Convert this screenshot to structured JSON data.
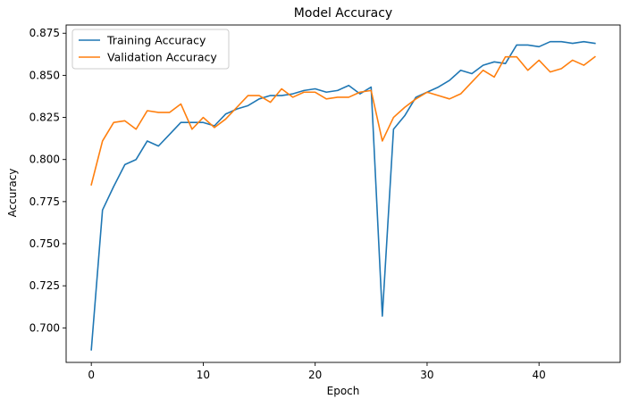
{
  "chart_data": {
    "type": "line",
    "title": "Model Accuracy",
    "xlabel": "Epoch",
    "ylabel": "Accuracy",
    "xlim": [
      -2.25,
      47.25
    ],
    "ylim": [
      0.6795,
      0.8799
    ],
    "xticks": [
      0,
      10,
      20,
      30,
      40
    ],
    "xtick_labels": [
      "0",
      "10",
      "20",
      "30",
      "40"
    ],
    "yticks": [
      0.7,
      0.725,
      0.75,
      0.775,
      0.8,
      0.825,
      0.85,
      0.875
    ],
    "ytick_labels": [
      "0.700",
      "0.725",
      "0.750",
      "0.775",
      "0.800",
      "0.825",
      "0.850",
      "0.875"
    ],
    "grid": false,
    "legend_position": "top-left",
    "x": [
      0,
      1,
      2,
      3,
      4,
      5,
      6,
      7,
      8,
      9,
      10,
      11,
      12,
      13,
      14,
      15,
      16,
      17,
      18,
      19,
      20,
      21,
      22,
      23,
      24,
      25,
      26,
      27,
      28,
      29,
      30,
      31,
      32,
      33,
      34,
      35,
      36,
      37,
      38,
      39,
      40,
      41,
      42,
      43,
      44,
      45
    ],
    "series": [
      {
        "name": "Training Accuracy",
        "color": "#1f77b4",
        "values": [
          0.687,
          0.77,
          0.784,
          0.797,
          0.8,
          0.811,
          0.808,
          0.815,
          0.822,
          0.822,
          0.822,
          0.82,
          0.827,
          0.83,
          0.832,
          0.836,
          0.838,
          0.838,
          0.839,
          0.841,
          0.842,
          0.84,
          0.841,
          0.844,
          0.839,
          0.843,
          0.707,
          0.818,
          0.826,
          0.837,
          0.84,
          0.843,
          0.847,
          0.853,
          0.851,
          0.856,
          0.858,
          0.857,
          0.868,
          0.868,
          0.867,
          0.87,
          0.87,
          0.869,
          0.87,
          0.869
        ]
      },
      {
        "name": "Validation Accuracy",
        "color": "#ff7f0e",
        "values": [
          0.785,
          0.811,
          0.822,
          0.823,
          0.818,
          0.829,
          0.828,
          0.828,
          0.833,
          0.818,
          0.825,
          0.819,
          0.824,
          0.831,
          0.838,
          0.838,
          0.834,
          0.842,
          0.837,
          0.84,
          0.84,
          0.836,
          0.837,
          0.837,
          0.84,
          0.841,
          0.811,
          0.825,
          0.831,
          0.836,
          0.84,
          0.838,
          0.836,
          0.839,
          0.846,
          0.853,
          0.849,
          0.861,
          0.861,
          0.853,
          0.859,
          0.852,
          0.854,
          0.859,
          0.856,
          0.861
        ]
      }
    ]
  }
}
